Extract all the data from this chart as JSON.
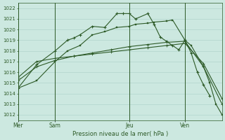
{
  "background_color": "#cce8e0",
  "grid_color": "#aad0c8",
  "line_color": "#2d5a27",
  "title": "Pression niveau de la mer( hPa )",
  "ylim": [
    1011.5,
    1022.5
  ],
  "yticks": [
    1012,
    1013,
    1014,
    1015,
    1016,
    1017,
    1018,
    1019,
    1020,
    1021,
    1022
  ],
  "day_labels": [
    "Mer",
    "Sam",
    "Jeu",
    "Ven"
  ],
  "day_positions": [
    0,
    6,
    18,
    27
  ],
  "xlim": [
    0,
    33
  ],
  "series1_x": [
    0,
    3,
    6,
    8,
    9,
    10,
    12,
    14,
    16,
    17,
    18,
    19,
    21,
    22,
    23,
    24,
    25,
    26,
    27,
    28,
    29,
    30,
    31
  ],
  "series1_y": [
    1014.5,
    1016.7,
    1018.0,
    1019.0,
    1019.2,
    1019.5,
    1020.3,
    1020.2,
    1021.5,
    1021.5,
    1021.5,
    1021.0,
    1021.5,
    1020.5,
    1019.3,
    1018.9,
    1018.5,
    1018.1,
    1019.0,
    1017.8,
    1016.0,
    1014.8,
    1013.8
  ],
  "series2_x": [
    0,
    3,
    6,
    8,
    10,
    12,
    14,
    16,
    18,
    19,
    21,
    22,
    24,
    25,
    27,
    28,
    30,
    31,
    32,
    33
  ],
  "series2_y": [
    1014.5,
    1015.2,
    1017.0,
    1018.0,
    1018.5,
    1019.5,
    1019.8,
    1020.2,
    1020.3,
    1020.5,
    1020.6,
    1020.7,
    1020.8,
    1020.9,
    1019.0,
    1018.5,
    1016.5,
    1015.0,
    1013.0,
    1012.0
  ],
  "series3_x": [
    0,
    3,
    6,
    9,
    12,
    15,
    18,
    21,
    24,
    27,
    30,
    33
  ],
  "series3_y": [
    1015.2,
    1016.5,
    1017.1,
    1017.5,
    1017.8,
    1018.1,
    1018.4,
    1018.6,
    1018.8,
    1018.9,
    1016.5,
    1013.0
  ],
  "series4_x": [
    0,
    3,
    6,
    9,
    12,
    15,
    18,
    21,
    24,
    27,
    30,
    33
  ],
  "series4_y": [
    1015.5,
    1017.0,
    1017.3,
    1017.5,
    1017.7,
    1017.9,
    1018.1,
    1018.3,
    1018.5,
    1018.7,
    1016.8,
    1013.5
  ]
}
